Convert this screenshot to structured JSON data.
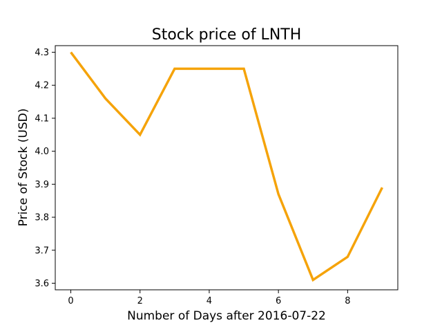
{
  "chart_data": {
    "type": "line",
    "title": "Stock price of LNTH",
    "xlabel": "Number of Days after 2016-07-22",
    "ylabel": "Price of Stock (USD)",
    "x": [
      0,
      1,
      2,
      3,
      4,
      5,
      6,
      7,
      8,
      9
    ],
    "series": [
      {
        "values": [
          4.3,
          4.16,
          4.05,
          4.25,
          4.25,
          4.25,
          3.87,
          3.61,
          3.68,
          3.89
        ],
        "color": "#f5a30a"
      }
    ],
    "xlim": [
      -0.45,
      9.45
    ],
    "ylim": [
      3.58,
      4.32
    ],
    "xticks": [
      0,
      2,
      4,
      6,
      8
    ],
    "xtick_labels": [
      "0",
      "2",
      "4",
      "6",
      "8"
    ],
    "yticks": [
      3.6,
      3.7,
      3.8,
      3.9,
      4.0,
      4.1,
      4.2,
      4.3
    ],
    "ytick_labels": [
      "3.6",
      "3.7",
      "3.8",
      "3.9",
      "4.0",
      "4.1",
      "4.2",
      "4.3"
    ],
    "grid": false,
    "legend": "none"
  }
}
